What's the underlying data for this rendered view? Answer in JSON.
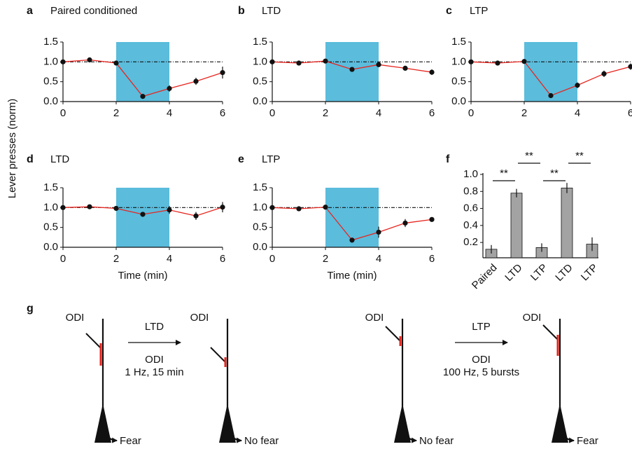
{
  "figure": {
    "ylabel": "Lever presses (norm)"
  },
  "chart_data": [
    {
      "type": "line",
      "panel": "a",
      "title": "Paired conditioned",
      "x": [
        0,
        1,
        2,
        3,
        4,
        5,
        6
      ],
      "values": [
        1.0,
        1.05,
        0.97,
        0.13,
        0.33,
        0.51,
        0.73
      ],
      "errors": [
        0,
        0.03,
        0.03,
        0.03,
        0.08,
        0.09,
        0.15
      ],
      "color": "#e8251f",
      "shade": [
        2,
        4
      ],
      "shade_color": "#5bbcdc",
      "reference_y": 1,
      "xlim": [
        0,
        6
      ],
      "xticks": [
        0,
        2,
        4,
        6
      ],
      "ylim": [
        0,
        1.5
      ],
      "yticks": [
        {
          "value": 0,
          "label": "0.0"
        },
        0.5,
        {
          "value": 1,
          "label": "1.0"
        },
        1.5
      ]
    },
    {
      "type": "line",
      "panel": "b",
      "title": "LTD",
      "x": [
        0,
        1,
        2,
        3,
        4,
        5,
        6
      ],
      "values": [
        1.0,
        0.97,
        1.02,
        0.81,
        0.93,
        0.84,
        0.74
      ],
      "errors": [
        0,
        0.03,
        0.03,
        0.04,
        0.06,
        0.06,
        0.07
      ],
      "color": "#e8251f",
      "shade": [
        2,
        4
      ],
      "shade_color": "#5bbcdc",
      "reference_y": 1,
      "xlim": [
        0,
        6
      ],
      "xticks": [
        0,
        2,
        4,
        6
      ],
      "ylim": [
        0,
        1.5
      ],
      "yticks": [
        {
          "value": 0,
          "label": "0.0"
        },
        0.5,
        {
          "value": 1,
          "label": "1.0"
        },
        1.5
      ]
    },
    {
      "type": "line",
      "panel": "c",
      "title": "LTP",
      "x": [
        0,
        1,
        2,
        3,
        4,
        5,
        6
      ],
      "values": [
        1.0,
        0.97,
        1.01,
        0.15,
        0.41,
        0.7,
        0.88
      ],
      "errors": [
        0,
        0.02,
        0.03,
        0.03,
        0.07,
        0.08,
        0.08
      ],
      "color": "#e8251f",
      "shade": [
        2,
        4
      ],
      "shade_color": "#5bbcdc",
      "reference_y": 1,
      "xlim": [
        0,
        6
      ],
      "xticks": [
        0,
        2,
        4,
        6
      ],
      "ylim": [
        0,
        1.5
      ],
      "yticks": [
        {
          "value": 0,
          "label": "0.0"
        },
        0.5,
        {
          "value": 1,
          "label": "1.0"
        },
        1.5
      ]
    },
    {
      "type": "line",
      "panel": "d",
      "title": "LTD",
      "xlabel": "Time (min)",
      "x": [
        0,
        1,
        2,
        3,
        4,
        5,
        6
      ],
      "values": [
        1.0,
        1.02,
        0.98,
        0.83,
        0.94,
        0.79,
        1.01
      ],
      "errors": [
        0,
        0.03,
        0.04,
        0.04,
        0.1,
        0.1,
        0.13
      ],
      "color": "#e8251f",
      "shade": [
        2,
        4
      ],
      "shade_color": "#5bbcdc",
      "reference_y": 1,
      "xlim": [
        0,
        6
      ],
      "xticks": [
        0,
        2,
        4,
        6
      ],
      "ylim": [
        0,
        1.5
      ],
      "yticks": [
        {
          "value": 0,
          "label": "0.0"
        },
        0.5,
        {
          "value": 1,
          "label": "1.0"
        },
        1.5
      ]
    },
    {
      "type": "line",
      "panel": "e",
      "title": "LTP",
      "xlabel": "Time (min)",
      "x": [
        0,
        1,
        2,
        3,
        4,
        5,
        6
      ],
      "values": [
        1.0,
        0.97,
        1.01,
        0.18,
        0.38,
        0.61,
        0.7
      ],
      "errors": [
        0,
        0.02,
        0.03,
        0.06,
        0.14,
        0.1,
        0.06
      ],
      "color": "#e8251f",
      "shade": [
        2,
        4
      ],
      "shade_color": "#5bbcdc",
      "reference_y": 1,
      "xlim": [
        0,
        6
      ],
      "xticks": [
        0,
        2,
        4,
        6
      ],
      "ylim": [
        0,
        1.5
      ],
      "yticks": [
        {
          "value": 0,
          "label": "0.0"
        },
        0.5,
        {
          "value": 1,
          "label": "1.0"
        },
        1.5
      ]
    },
    {
      "type": "bar",
      "panel": "f",
      "categories": [
        "Paired",
        "LTD",
        "LTP",
        "LTD",
        "LTP"
      ],
      "values": [
        0.12,
        0.78,
        0.14,
        0.84,
        0.18
      ],
      "errors": [
        0.05,
        0.05,
        0.05,
        0.06,
        0.08
      ],
      "color": "#a3a3a3",
      "ylim": [
        0.02,
        1.0
      ],
      "yticks": [
        0.2,
        0.4,
        0.6,
        0.8,
        {
          "value": 1,
          "label": "1.0"
        }
      ],
      "annotations": [
        "**",
        "**",
        "**",
        "**"
      ]
    }
  ],
  "diagram": {
    "panel": "g",
    "neurons": [
      {
        "label": "ODI",
        "outcome": "Fear"
      },
      {
        "label": "ODI",
        "outcome": "No fear"
      },
      {
        "label": "ODI",
        "outcome": "No fear"
      },
      {
        "label": "ODI",
        "outcome": "Fear"
      }
    ],
    "transitions": [
      {
        "name": "LTD",
        "stimulus": "ODI",
        "protocol": "1 Hz, 15 min"
      },
      {
        "name": "LTP",
        "stimulus": "ODI",
        "protocol": "100 Hz, 5 bursts"
      }
    ]
  }
}
